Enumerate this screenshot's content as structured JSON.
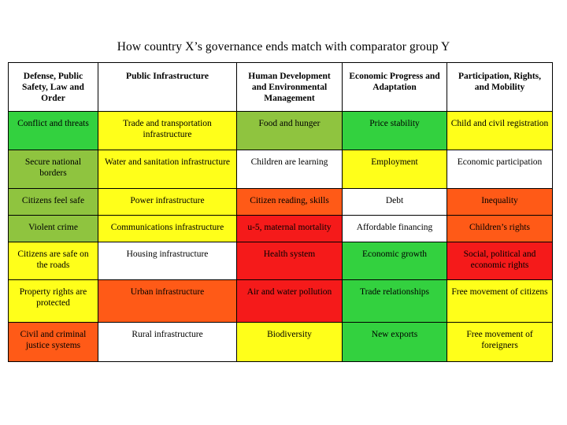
{
  "title": "How country X’s governance ends match with comparator group Y",
  "columns": [
    "Defense, Public Safety, Law and Order",
    "Public Infrastructure",
    "Human Development and Environmental Management",
    "Economic Progress and Adaptation",
    "Participation, Rights, and Mobility"
  ],
  "colors": {
    "green": "#33d13f",
    "olive": "#8fc43f",
    "yellow": "#ffff1a",
    "white": "#ffffff",
    "orange": "#ff5a17",
    "red": "#f51a1a"
  },
  "rows": [
    [
      {
        "text": "Conflict and threats",
        "color": "green"
      },
      {
        "text": "Trade and transportation infrastructure",
        "color": "yellow"
      },
      {
        "text": "Food and hunger",
        "color": "olive"
      },
      {
        "text": "Price stability",
        "color": "green"
      },
      {
        "text": "Child and civil registration",
        "color": "yellow"
      }
    ],
    [
      {
        "text": "Secure national borders",
        "color": "olive"
      },
      {
        "text": "Water and sanitation infrastructure",
        "color": "yellow"
      },
      {
        "text": "Children are learning",
        "color": "white"
      },
      {
        "text": "Employment",
        "color": "yellow"
      },
      {
        "text": "Economic participation",
        "color": "white"
      }
    ],
    [
      {
        "text": "Citizens feel safe",
        "color": "olive"
      },
      {
        "text": "Power infrastructure",
        "color": "yellow"
      },
      {
        "text": "Citizen reading, skills",
        "color": "orange"
      },
      {
        "text": "Debt",
        "color": "white"
      },
      {
        "text": "Inequality",
        "color": "orange"
      }
    ],
    [
      {
        "text": "Violent crime",
        "color": "olive"
      },
      {
        "text": "Communications infrastructure",
        "color": "yellow"
      },
      {
        "text": "u-5, maternal mortality",
        "color": "red"
      },
      {
        "text": "Affordable financing",
        "color": "white"
      },
      {
        "text": "Children’s rights",
        "color": "orange"
      }
    ],
    [
      {
        "text": "Citizens are safe on the roads",
        "color": "yellow"
      },
      {
        "text": "Housing infrastructure",
        "color": "white"
      },
      {
        "text": "Health system",
        "color": "red"
      },
      {
        "text": "Economic growth",
        "color": "green"
      },
      {
        "text": "Social, political and economic rights",
        "color": "red"
      }
    ],
    [
      {
        "text": "Property rights are protected",
        "color": "yellow"
      },
      {
        "text": "Urban infrastructure",
        "color": "orange"
      },
      {
        "text": "Air and water pollution",
        "color": "red"
      },
      {
        "text": "Trade relationships",
        "color": "green"
      },
      {
        "text": "Free movement of citizens",
        "color": "yellow"
      }
    ],
    [
      {
        "text": "Civil and criminal justice systems",
        "color": "orange"
      },
      {
        "text": "Rural infrastructure",
        "color": "white"
      },
      {
        "text": "Biodiversity",
        "color": "yellow"
      },
      {
        "text": "New exports",
        "color": "green"
      },
      {
        "text": "Free movement of foreigners",
        "color": "yellow"
      }
    ]
  ]
}
